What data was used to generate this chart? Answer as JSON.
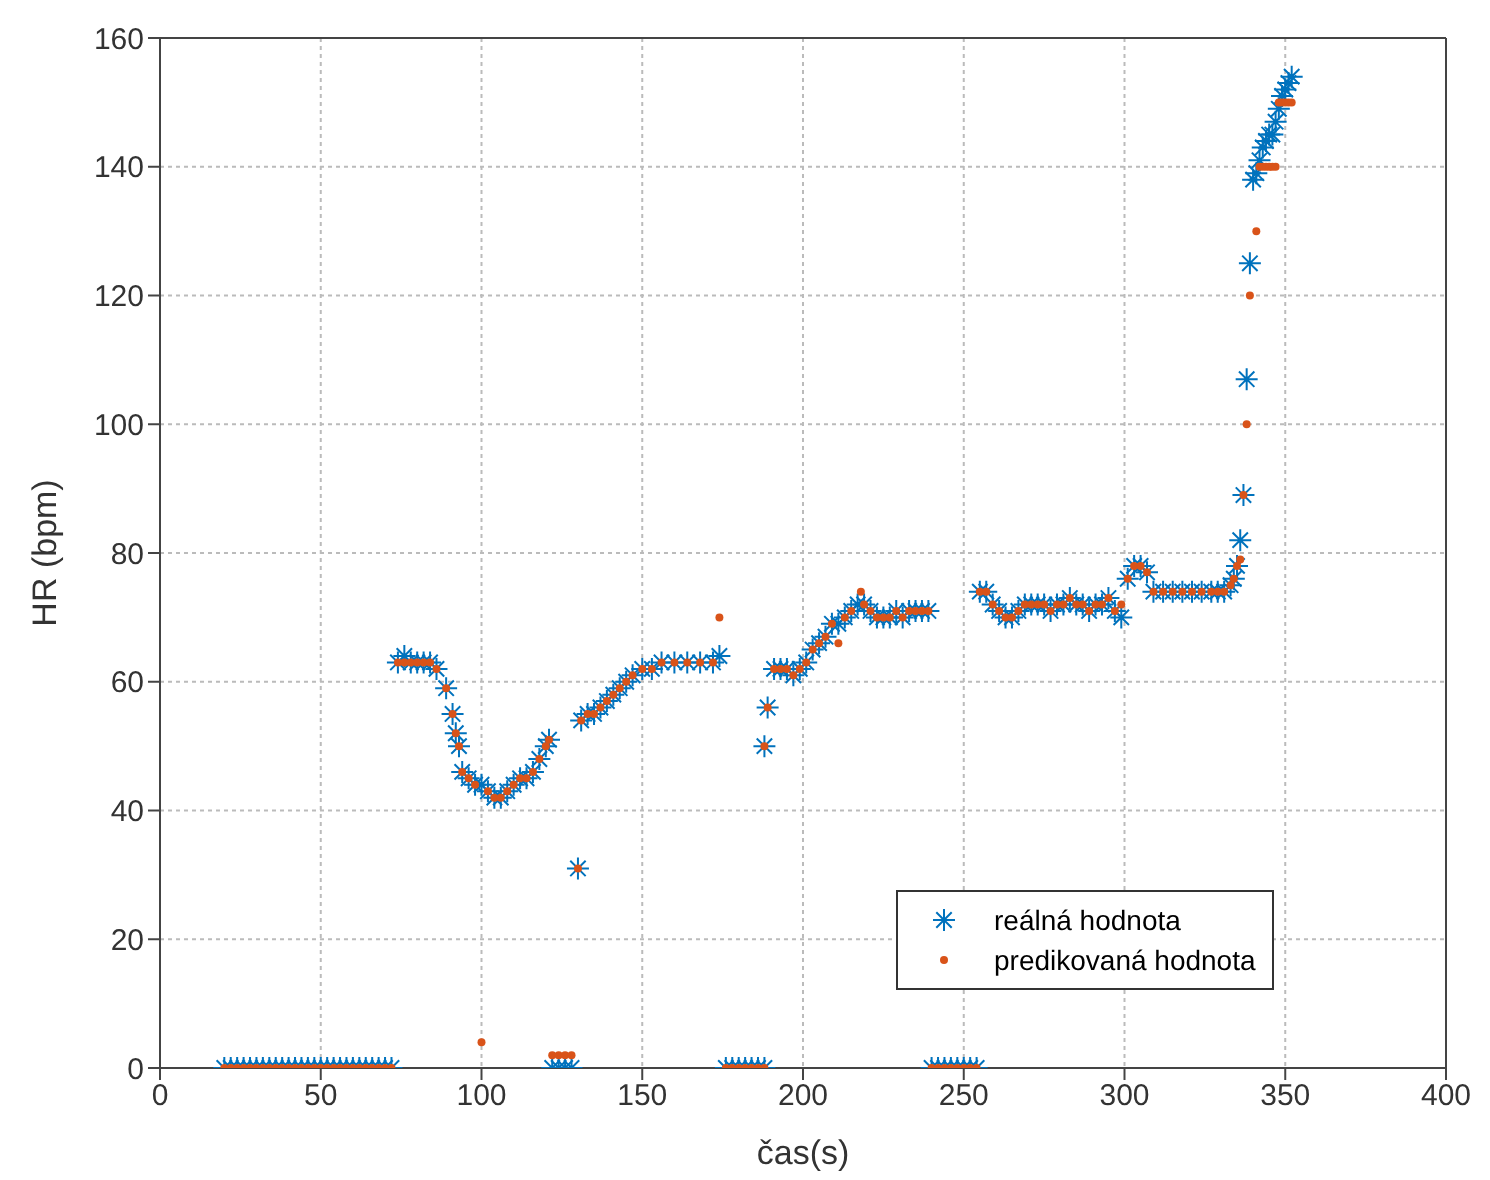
{
  "chart_data": {
    "type": "scatter",
    "xlabel": "čas(s)",
    "ylabel": "HR (bpm)",
    "xlim": [
      0,
      400
    ],
    "xticks": [
      0,
      50,
      100,
      150,
      200,
      250,
      300,
      350,
      400
    ],
    "ylim": [
      0,
      160
    ],
    "yticks": [
      0,
      20,
      40,
      60,
      80,
      100,
      120,
      140,
      160
    ],
    "grid": true,
    "legend": "bottom right",
    "series": [
      {
        "name": "reálná hodnota",
        "color": "#0072bd",
        "marker": "cross",
        "x": [
          20,
          22,
          24,
          26,
          28,
          30,
          32,
          34,
          36,
          38,
          40,
          42,
          44,
          46,
          48,
          50,
          52,
          54,
          56,
          58,
          60,
          62,
          64,
          66,
          68,
          70,
          72,
          74,
          76,
          78,
          80,
          82,
          84,
          86,
          89,
          91,
          92,
          93,
          94,
          96,
          98,
          100,
          102,
          104,
          106,
          108,
          110,
          112,
          114,
          116,
          118,
          120,
          121,
          122,
          124,
          126,
          128,
          130,
          131,
          133,
          135,
          137,
          139,
          141,
          143,
          145,
          147,
          150,
          153,
          156,
          160,
          164,
          168,
          172,
          174,
          176,
          178,
          180,
          182,
          184,
          186,
          188,
          188,
          189,
          191,
          193,
          195,
          197,
          199,
          201,
          203,
          205,
          207,
          209,
          211,
          213,
          215,
          217,
          219,
          221,
          223,
          225,
          227,
          229,
          231,
          233,
          235,
          237,
          239,
          240,
          242,
          244,
          246,
          248,
          250,
          252,
          254,
          255,
          257,
          259,
          261,
          263,
          265,
          267,
          269,
          271,
          273,
          275,
          277,
          279,
          281,
          283,
          285,
          287,
          289,
          291,
          293,
          295,
          297,
          299,
          301,
          303,
          305,
          307,
          309,
          312,
          315,
          318,
          321,
          324,
          327,
          329,
          331,
          333,
          334,
          335,
          336,
          337,
          338,
          339,
          340,
          341,
          342,
          343,
          344,
          345,
          346,
          347,
          348,
          349,
          350,
          351,
          352
        ],
        "values": [
          0,
          0,
          0,
          0,
          0,
          0,
          0,
          0,
          0,
          0,
          0,
          0,
          0,
          0,
          0,
          0,
          0,
          0,
          0,
          0,
          0,
          0,
          0,
          0,
          0,
          0,
          0,
          63,
          64,
          63,
          63,
          63,
          63,
          62,
          59,
          55,
          52,
          50,
          46,
          45,
          44,
          44,
          43,
          42,
          42,
          43,
          44,
          45,
          45,
          46,
          48,
          50,
          51,
          0,
          0,
          0,
          0,
          31,
          54,
          55,
          55,
          56,
          57,
          58,
          59,
          60,
          61,
          62,
          62,
          63,
          63,
          63,
          63,
          63,
          64,
          0,
          0,
          0,
          0,
          0,
          0,
          0,
          50,
          56,
          62,
          62,
          62,
          61,
          62,
          63,
          65,
          66,
          67,
          69,
          69,
          70,
          71,
          72,
          72,
          71,
          70,
          70,
          70,
          71,
          70,
          71,
          71,
          71,
          71,
          0,
          0,
          0,
          0,
          0,
          0,
          0,
          0,
          74,
          74,
          72,
          71,
          70,
          70,
          71,
          72,
          72,
          72,
          72,
          71,
          72,
          72,
          73,
          72,
          72,
          71,
          72,
          72,
          73,
          71,
          70,
          76,
          78,
          78,
          77,
          74,
          74,
          74,
          74,
          74,
          74,
          74,
          74,
          74,
          75,
          76,
          78,
          82,
          89,
          107,
          125,
          138,
          139,
          141,
          143,
          144,
          145,
          145,
          147,
          149,
          151,
          152,
          153,
          154
        ]
      },
      {
        "name": "predikovaná hodnota",
        "color": "#d95319",
        "marker": "circle",
        "x": [
          20,
          22,
          24,
          26,
          28,
          30,
          32,
          34,
          36,
          38,
          40,
          42,
          44,
          46,
          48,
          50,
          52,
          54,
          56,
          58,
          60,
          62,
          64,
          66,
          68,
          70,
          72,
          74,
          76,
          78,
          80,
          82,
          84,
          86,
          89,
          91,
          92,
          93,
          94,
          96,
          98,
          100,
          102,
          104,
          106,
          108,
          110,
          112,
          114,
          116,
          118,
          120,
          121,
          122,
          124,
          126,
          128,
          130,
          131,
          133,
          135,
          137,
          139,
          141,
          143,
          145,
          147,
          150,
          153,
          156,
          160,
          164,
          168,
          172,
          174,
          176,
          178,
          180,
          182,
          184,
          186,
          188,
          188,
          189,
          191,
          193,
          195,
          197,
          199,
          201,
          203,
          205,
          207,
          209,
          211,
          213,
          215,
          218,
          219,
          221,
          223,
          225,
          227,
          229,
          231,
          233,
          235,
          237,
          239,
          240,
          242,
          244,
          246,
          248,
          250,
          252,
          254,
          255,
          257,
          259,
          261,
          263,
          265,
          267,
          269,
          271,
          273,
          275,
          277,
          279,
          281,
          283,
          285,
          287,
          289,
          291,
          293,
          295,
          297,
          299,
          301,
          303,
          305,
          307,
          309,
          312,
          315,
          318,
          321,
          324,
          327,
          329,
          331,
          333,
          334,
          335,
          336,
          337,
          338,
          339,
          341,
          342,
          343,
          344,
          345,
          346,
          347,
          348,
          349,
          350,
          351,
          352
        ],
        "values": [
          0,
          0,
          0,
          0,
          0,
          0,
          0,
          0,
          0,
          0,
          0,
          0,
          0,
          0,
          0,
          0,
          0,
          0,
          0,
          0,
          0,
          0,
          0,
          0,
          0,
          0,
          0,
          63,
          63,
          63,
          63,
          63,
          63,
          62,
          59,
          55,
          52,
          50,
          46,
          45,
          44,
          4,
          43,
          42,
          42,
          43,
          44,
          45,
          45,
          46,
          48,
          50,
          51,
          2,
          2,
          2,
          2,
          31,
          54,
          55,
          55,
          56,
          57,
          58,
          59,
          60,
          61,
          62,
          62,
          63,
          63,
          63,
          63,
          63,
          70,
          0,
          0,
          0,
          0,
          0,
          0,
          0,
          50,
          56,
          62,
          62,
          62,
          61,
          62,
          63,
          65,
          66,
          67,
          69,
          66,
          70,
          71,
          74,
          72,
          71,
          70,
          70,
          70,
          71,
          70,
          71,
          71,
          71,
          71,
          0,
          0,
          0,
          0,
          0,
          0,
          0,
          0,
          74,
          74,
          72,
          71,
          70,
          70,
          71,
          72,
          72,
          72,
          72,
          71,
          72,
          72,
          73,
          72,
          72,
          71,
          72,
          72,
          73,
          71,
          72,
          76,
          78,
          78,
          77,
          74,
          74,
          74,
          74,
          74,
          74,
          74,
          74,
          74,
          75,
          76,
          78,
          79,
          89,
          100,
          120,
          130,
          140,
          140,
          140,
          140,
          140,
          140,
          150,
          150,
          150,
          150,
          150
        ]
      }
    ]
  }
}
